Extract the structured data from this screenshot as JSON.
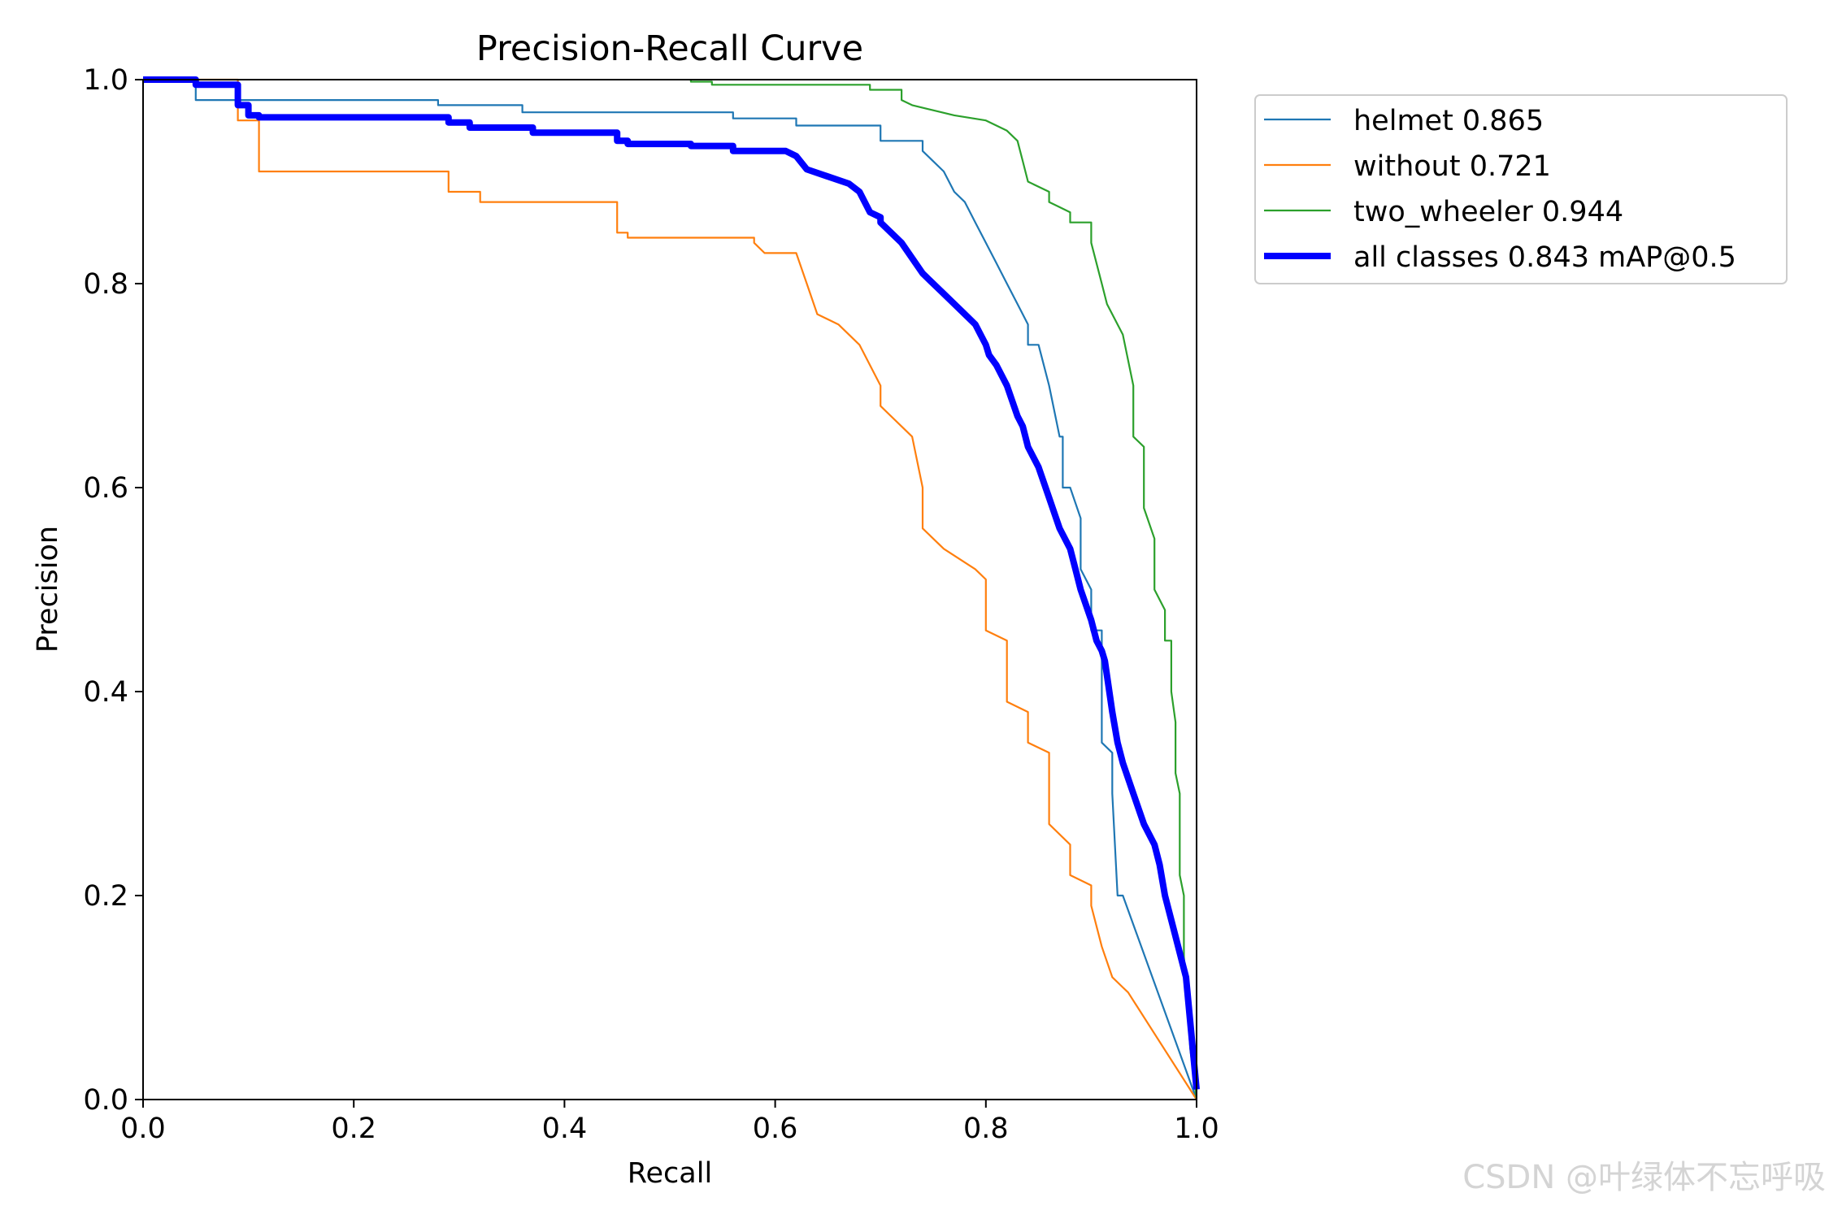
{
  "watermark": "CSDN @叶绿体不忘呼吸",
  "chart_data": {
    "type": "line",
    "title": "Precision-Recall Curve",
    "xlabel": "Recall",
    "ylabel": "Precision",
    "xlim": [
      0,
      1
    ],
    "ylim": [
      0,
      1
    ],
    "xticks": [
      "0.0",
      "0.2",
      "0.4",
      "0.6",
      "0.8",
      "1.0"
    ],
    "yticks": [
      "0.0",
      "0.2",
      "0.4",
      "0.6",
      "0.8",
      "1.0"
    ],
    "grid": false,
    "legend_position": "outside-top-right",
    "series": [
      {
        "name": "helmet 0.865",
        "color": "#1f77b4",
        "width": "thin",
        "x": [
          0,
          0.05,
          0.05,
          0.28,
          0.28,
          0.36,
          0.36,
          0.56,
          0.56,
          0.62,
          0.62,
          0.7,
          0.7,
          0.74,
          0.74,
          0.76,
          0.77,
          0.78,
          0.79,
          0.8,
          0.81,
          0.82,
          0.83,
          0.84,
          0.84,
          0.85,
          0.86,
          0.87,
          0.873,
          0.873,
          0.88,
          0.89,
          0.89,
          0.9,
          0.9,
          0.91,
          0.91,
          0.92,
          0.92,
          0.925,
          0.93,
          1.0
        ],
        "y": [
          1.0,
          1.0,
          0.98,
          0.98,
          0.975,
          0.975,
          0.968,
          0.968,
          0.962,
          0.962,
          0.955,
          0.955,
          0.94,
          0.94,
          0.93,
          0.91,
          0.89,
          0.88,
          0.86,
          0.84,
          0.82,
          0.8,
          0.78,
          0.76,
          0.74,
          0.74,
          0.7,
          0.65,
          0.65,
          0.6,
          0.6,
          0.57,
          0.52,
          0.5,
          0.46,
          0.46,
          0.35,
          0.34,
          0.3,
          0.2,
          0.2,
          0.0
        ]
      },
      {
        "name": "without 0.721",
        "color": "#ff7f0e",
        "width": "thin",
        "x": [
          0,
          0.09,
          0.09,
          0.11,
          0.11,
          0.29,
          0.29,
          0.32,
          0.32,
          0.45,
          0.45,
          0.46,
          0.46,
          0.58,
          0.58,
          0.59,
          0.62,
          0.63,
          0.64,
          0.66,
          0.68,
          0.7,
          0.7,
          0.72,
          0.73,
          0.74,
          0.74,
          0.76,
          0.79,
          0.8,
          0.8,
          0.82,
          0.82,
          0.84,
          0.84,
          0.86,
          0.86,
          0.88,
          0.88,
          0.9,
          0.9,
          0.91,
          0.92,
          0.93,
          0.935,
          1.0
        ],
        "y": [
          1.0,
          1.0,
          0.96,
          0.96,
          0.91,
          0.91,
          0.89,
          0.89,
          0.88,
          0.88,
          0.85,
          0.85,
          0.845,
          0.845,
          0.84,
          0.83,
          0.83,
          0.8,
          0.77,
          0.76,
          0.74,
          0.7,
          0.68,
          0.66,
          0.65,
          0.6,
          0.56,
          0.54,
          0.52,
          0.51,
          0.46,
          0.45,
          0.39,
          0.38,
          0.35,
          0.34,
          0.27,
          0.25,
          0.22,
          0.21,
          0.19,
          0.15,
          0.12,
          0.11,
          0.105,
          0.0
        ]
      },
      {
        "name": "two_wheeler 0.944",
        "color": "#2ca02c",
        "width": "thin",
        "x": [
          0.52,
          0.52,
          0.54,
          0.54,
          0.69,
          0.69,
          0.72,
          0.72,
          0.73,
          0.75,
          0.77,
          0.8,
          0.82,
          0.83,
          0.835,
          0.84,
          0.86,
          0.86,
          0.88,
          0.88,
          0.9,
          0.9,
          0.91,
          0.915,
          0.93,
          0.94,
          0.94,
          0.95,
          0.95,
          0.96,
          0.96,
          0.97,
          0.97,
          0.976,
          0.976,
          0.98,
          0.98,
          0.984,
          0.984,
          0.988,
          0.988,
          0.991,
          0.994,
          1.0
        ],
        "y": [
          1.0,
          0.998,
          0.998,
          0.995,
          0.995,
          0.99,
          0.99,
          0.98,
          0.975,
          0.97,
          0.965,
          0.96,
          0.95,
          0.94,
          0.92,
          0.9,
          0.89,
          0.88,
          0.87,
          0.86,
          0.86,
          0.84,
          0.8,
          0.78,
          0.75,
          0.7,
          0.65,
          0.64,
          0.58,
          0.55,
          0.5,
          0.48,
          0.45,
          0.45,
          0.4,
          0.37,
          0.32,
          0.3,
          0.22,
          0.2,
          0.14,
          0.1,
          0.05,
          0.0
        ]
      },
      {
        "name": "all classes 0.843 mAP@0.5",
        "color": "#0000ff",
        "width": "thick",
        "x": [
          0,
          0.05,
          0.05,
          0.09,
          0.09,
          0.1,
          0.1,
          0.11,
          0.11,
          0.29,
          0.29,
          0.31,
          0.31,
          0.37,
          0.37,
          0.45,
          0.45,
          0.46,
          0.46,
          0.52,
          0.52,
          0.56,
          0.56,
          0.61,
          0.62,
          0.63,
          0.65,
          0.67,
          0.68,
          0.69,
          0.7,
          0.7,
          0.72,
          0.74,
          0.75,
          0.76,
          0.78,
          0.79,
          0.8,
          0.803,
          0.81,
          0.82,
          0.83,
          0.835,
          0.84,
          0.85,
          0.86,
          0.87,
          0.88,
          0.885,
          0.89,
          0.9,
          0.905,
          0.91,
          0.913,
          0.92,
          0.925,
          0.93,
          0.94,
          0.95,
          0.96,
          0.965,
          0.97,
          0.98,
          0.99,
          1.0
        ],
        "y": [
          1.0,
          1.0,
          0.995,
          0.995,
          0.975,
          0.975,
          0.965,
          0.965,
          0.963,
          0.963,
          0.958,
          0.958,
          0.953,
          0.953,
          0.948,
          0.948,
          0.94,
          0.94,
          0.937,
          0.937,
          0.935,
          0.935,
          0.93,
          0.93,
          0.925,
          0.912,
          0.905,
          0.898,
          0.89,
          0.87,
          0.865,
          0.86,
          0.84,
          0.81,
          0.8,
          0.79,
          0.77,
          0.76,
          0.74,
          0.73,
          0.72,
          0.7,
          0.67,
          0.66,
          0.64,
          0.62,
          0.59,
          0.56,
          0.54,
          0.52,
          0.5,
          0.47,
          0.45,
          0.44,
          0.43,
          0.38,
          0.35,
          0.33,
          0.3,
          0.27,
          0.25,
          0.23,
          0.2,
          0.16,
          0.12,
          0.01
        ]
      }
    ]
  }
}
